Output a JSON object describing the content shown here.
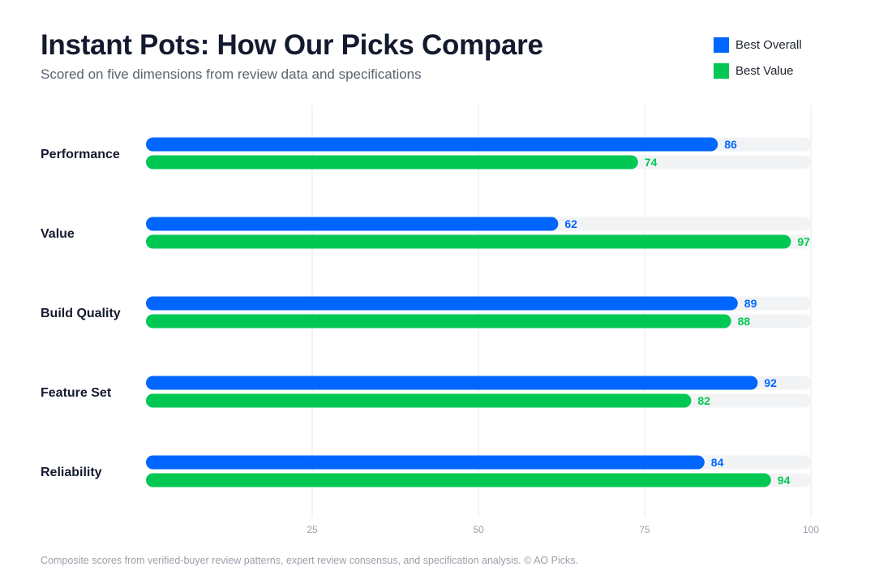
{
  "header": {
    "title": "Instant Pots: How Our Picks Compare",
    "subtitle": "Scored on five dimensions from review data and specifications"
  },
  "footnote": "Composite scores from verified-buyer review patterns, expert review consensus, and specification analysis. © AO Picks.",
  "colors": {
    "best_overall": "#0066ff",
    "best_value": "#00c853",
    "track": "#f2f3f5",
    "grid": "#e6e8eb",
    "axis_text": "#9aa0aa",
    "category_text": "#141a2e"
  },
  "chart_data": {
    "type": "bar",
    "orientation": "horizontal",
    "title": "Instant Pots: How Our Picks Compare",
    "subtitle": "Scored on five dimensions from review data and specifications",
    "categories": [
      "Performance",
      "Value",
      "Build Quality",
      "Feature Set",
      "Reliability"
    ],
    "series": [
      {
        "name": "Best Overall",
        "color": "#0066ff",
        "values": [
          86,
          62,
          89,
          92,
          84
        ]
      },
      {
        "name": "Best Value",
        "color": "#00c853",
        "values": [
          74,
          97,
          88,
          82,
          94
        ]
      }
    ],
    "xlim": [
      0,
      100
    ],
    "xticks": [
      25,
      50,
      75,
      100
    ],
    "grid": true,
    "legend": "top-right",
    "data_labels": true
  }
}
